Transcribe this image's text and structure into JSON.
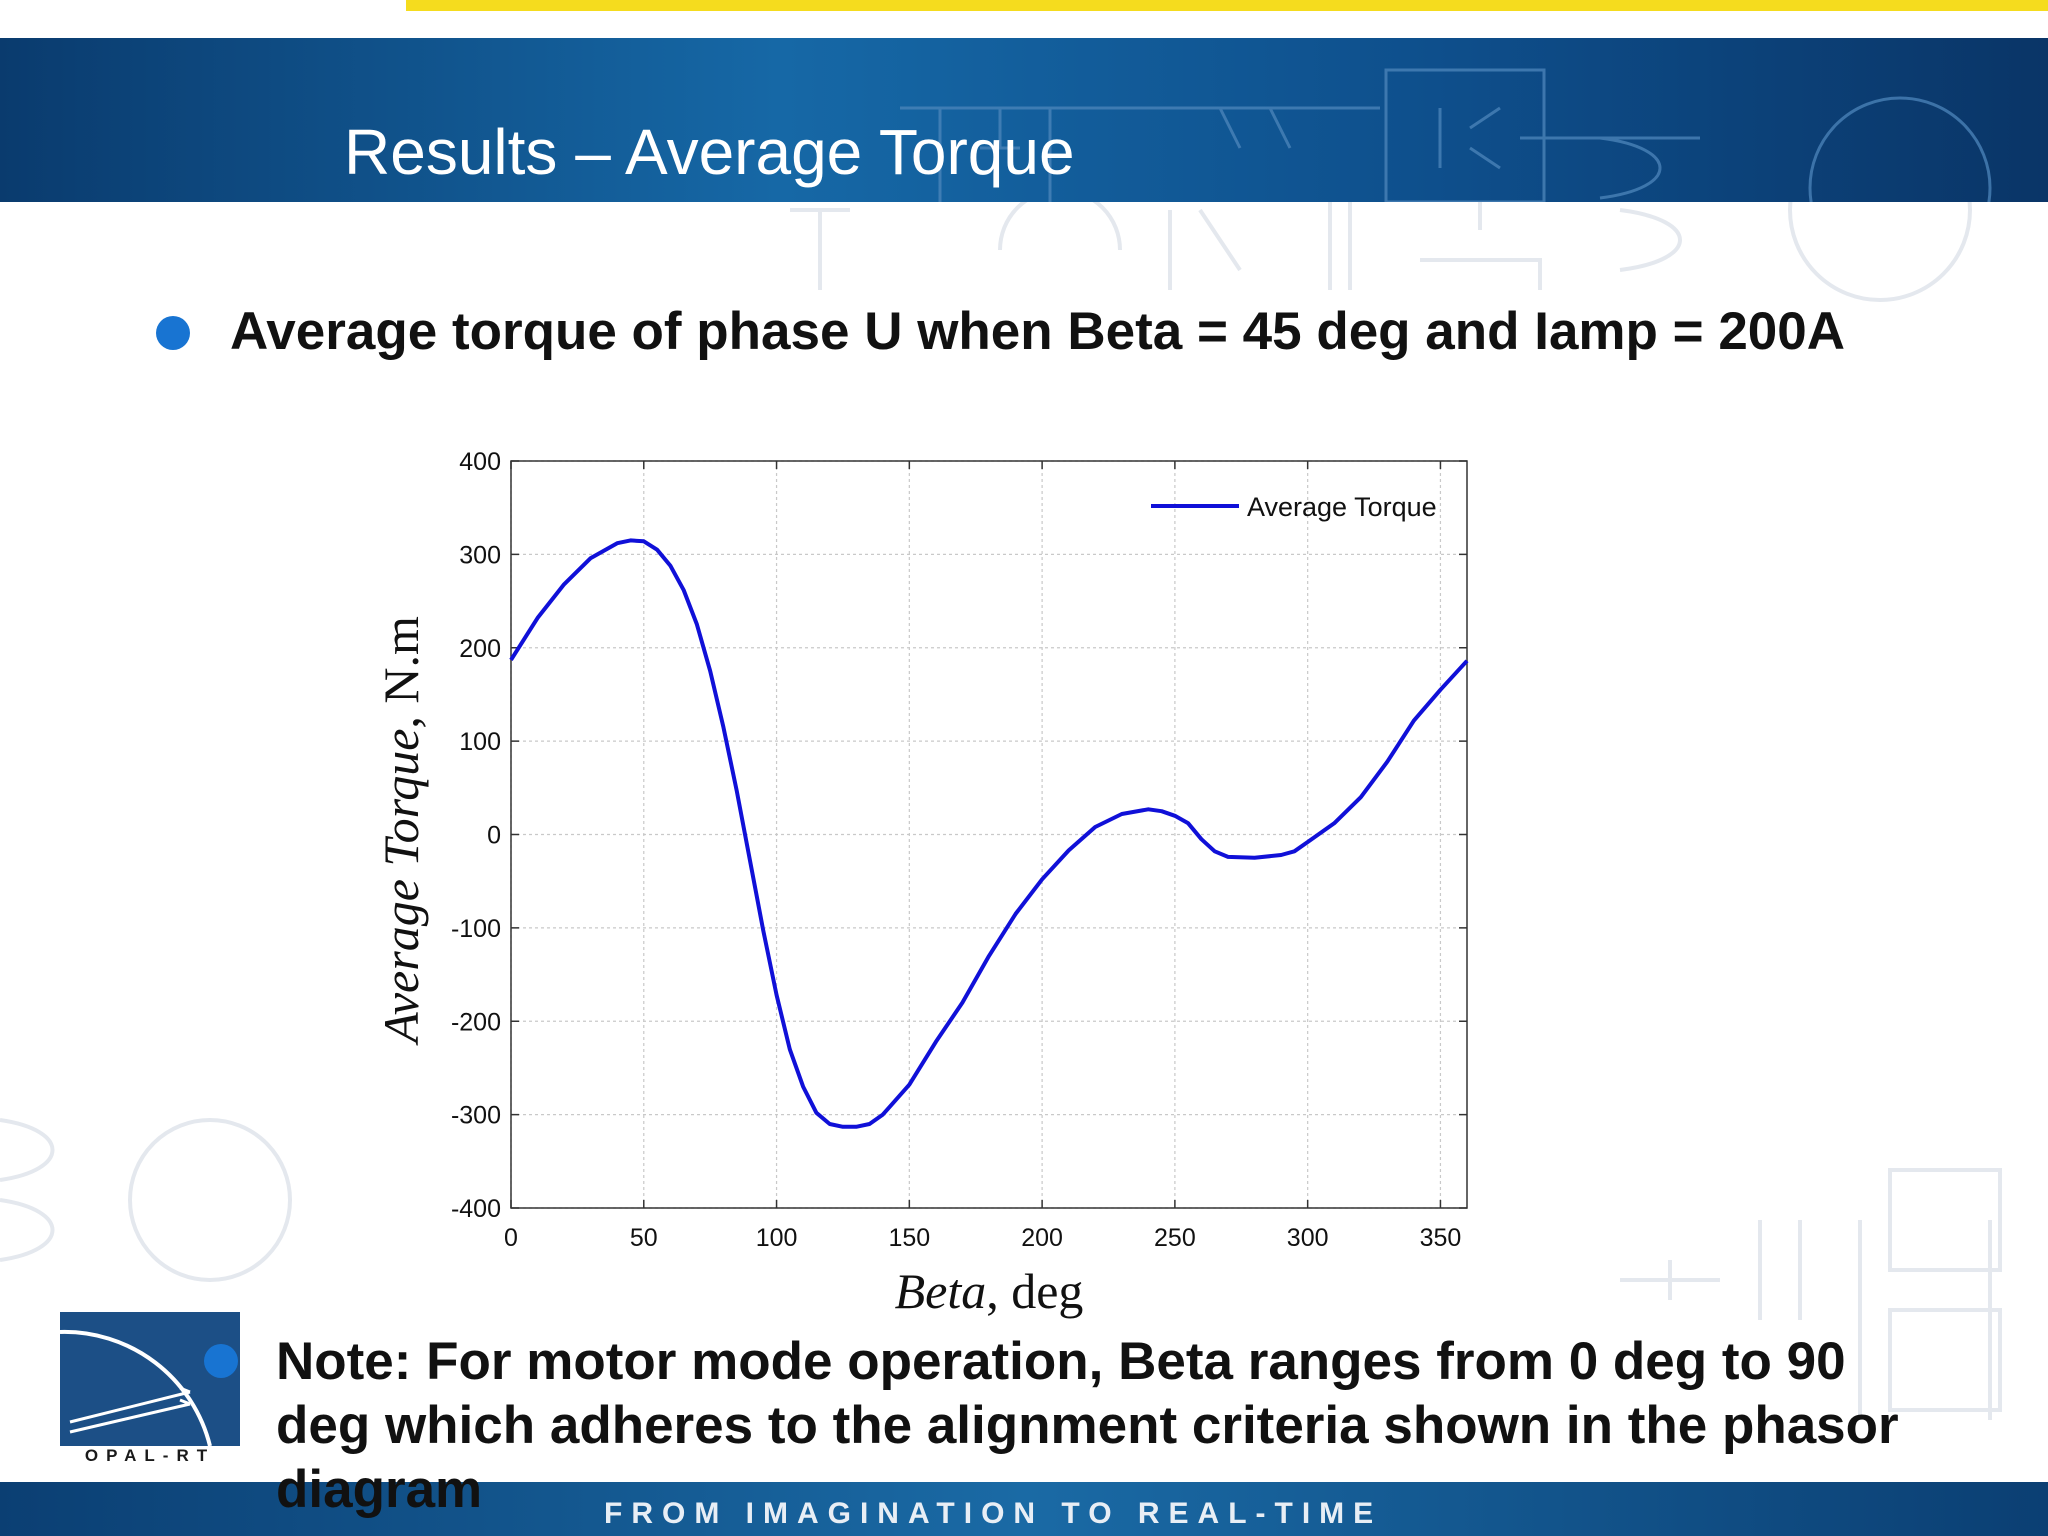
{
  "slide": {
    "title": "Results – Average Torque",
    "bullet1": "Average torque of phase U when Beta = 45 deg and Iamp = 200A",
    "bullet2": "Note: For motor mode operation, Beta ranges from 0 deg to 90 deg which adheres to the alignment criteria shown in the phasor diagram",
    "logo_text": "OPAL-RT",
    "tagline": "FROM IMAGINATION TO REAL-TIME"
  },
  "colors": {
    "header": "#1464a0",
    "bullet": "#1874d2",
    "series": "#1010d8",
    "accent_yellow": "#f5dc1e"
  },
  "chart_data": {
    "type": "line",
    "title": "",
    "xlabel_italic": "Beta",
    "xlabel_rest": ", deg",
    "ylabel_italic": "Average Torque",
    "ylabel_rest": ", N.m",
    "xlim": [
      0,
      360
    ],
    "ylim": [
      -400,
      400
    ],
    "xticks": [
      0,
      50,
      100,
      150,
      200,
      250,
      300,
      350
    ],
    "yticks": [
      -400,
      -300,
      -200,
      -100,
      0,
      100,
      200,
      300,
      400
    ],
    "grid": true,
    "legend_position": "top-right",
    "series": [
      {
        "name": "Average Torque",
        "color": "#1010d8",
        "x": [
          0,
          10,
          20,
          30,
          40,
          45,
          50,
          55,
          60,
          65,
          70,
          75,
          80,
          85,
          90,
          95,
          100,
          105,
          110,
          115,
          120,
          125,
          130,
          135,
          140,
          150,
          160,
          170,
          180,
          190,
          200,
          210,
          220,
          230,
          240,
          245,
          250,
          255,
          260,
          265,
          270,
          280,
          290,
          295,
          300,
          310,
          320,
          330,
          340,
          350,
          360
        ],
        "y": [
          187,
          232,
          268,
          296,
          312,
          315,
          314,
          305,
          288,
          262,
          225,
          175,
          115,
          47,
          -28,
          -103,
          -172,
          -230,
          -270,
          -298,
          -310,
          -313,
          -313,
          -310,
          -300,
          -268,
          -222,
          -180,
          -130,
          -85,
          -48,
          -17,
          8,
          22,
          27,
          25,
          20,
          12,
          -5,
          -18,
          -24,
          -25,
          -22,
          -18,
          -8,
          12,
          40,
          78,
          122,
          155,
          186
        ]
      }
    ]
  }
}
